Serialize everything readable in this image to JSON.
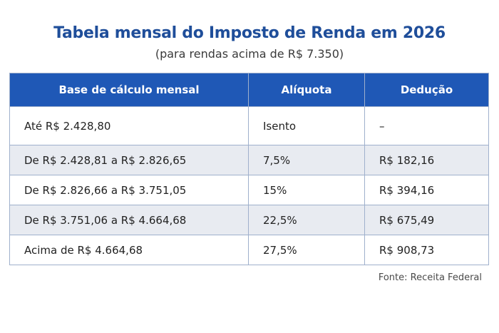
{
  "title": "Tabela mensal do Imposto de Renda em 2026",
  "subtitle": "(para rendas acima de R$ 7.350)",
  "table": {
    "headers": [
      "Base de cálculo mensal",
      "Alíquota",
      "Dedução"
    ],
    "rows": [
      [
        "Até R$ 2.428,80",
        "Isento",
        "–"
      ],
      [
        "De R$ 2.428,81 a R$ 2.826,65",
        "7,5%",
        "R$ 182,16"
      ],
      [
        "De R$ 2.826,66 a R$ 3.751,05",
        "15%",
        "R$ 394,16"
      ],
      [
        "De R$ 3.751,06 a R$ 4.664,68",
        "22,5%",
        "R$ 675,49"
      ],
      [
        "Acima de R$ 4.664,68",
        "27,5%",
        "R$ 908,73"
      ]
    ]
  },
  "source": "Fonte: Receita Federal",
  "colors": {
    "title": "#1f4e9a",
    "header_bg": "#1f58b6",
    "alt_row_bg": "#e8ebf1"
  }
}
